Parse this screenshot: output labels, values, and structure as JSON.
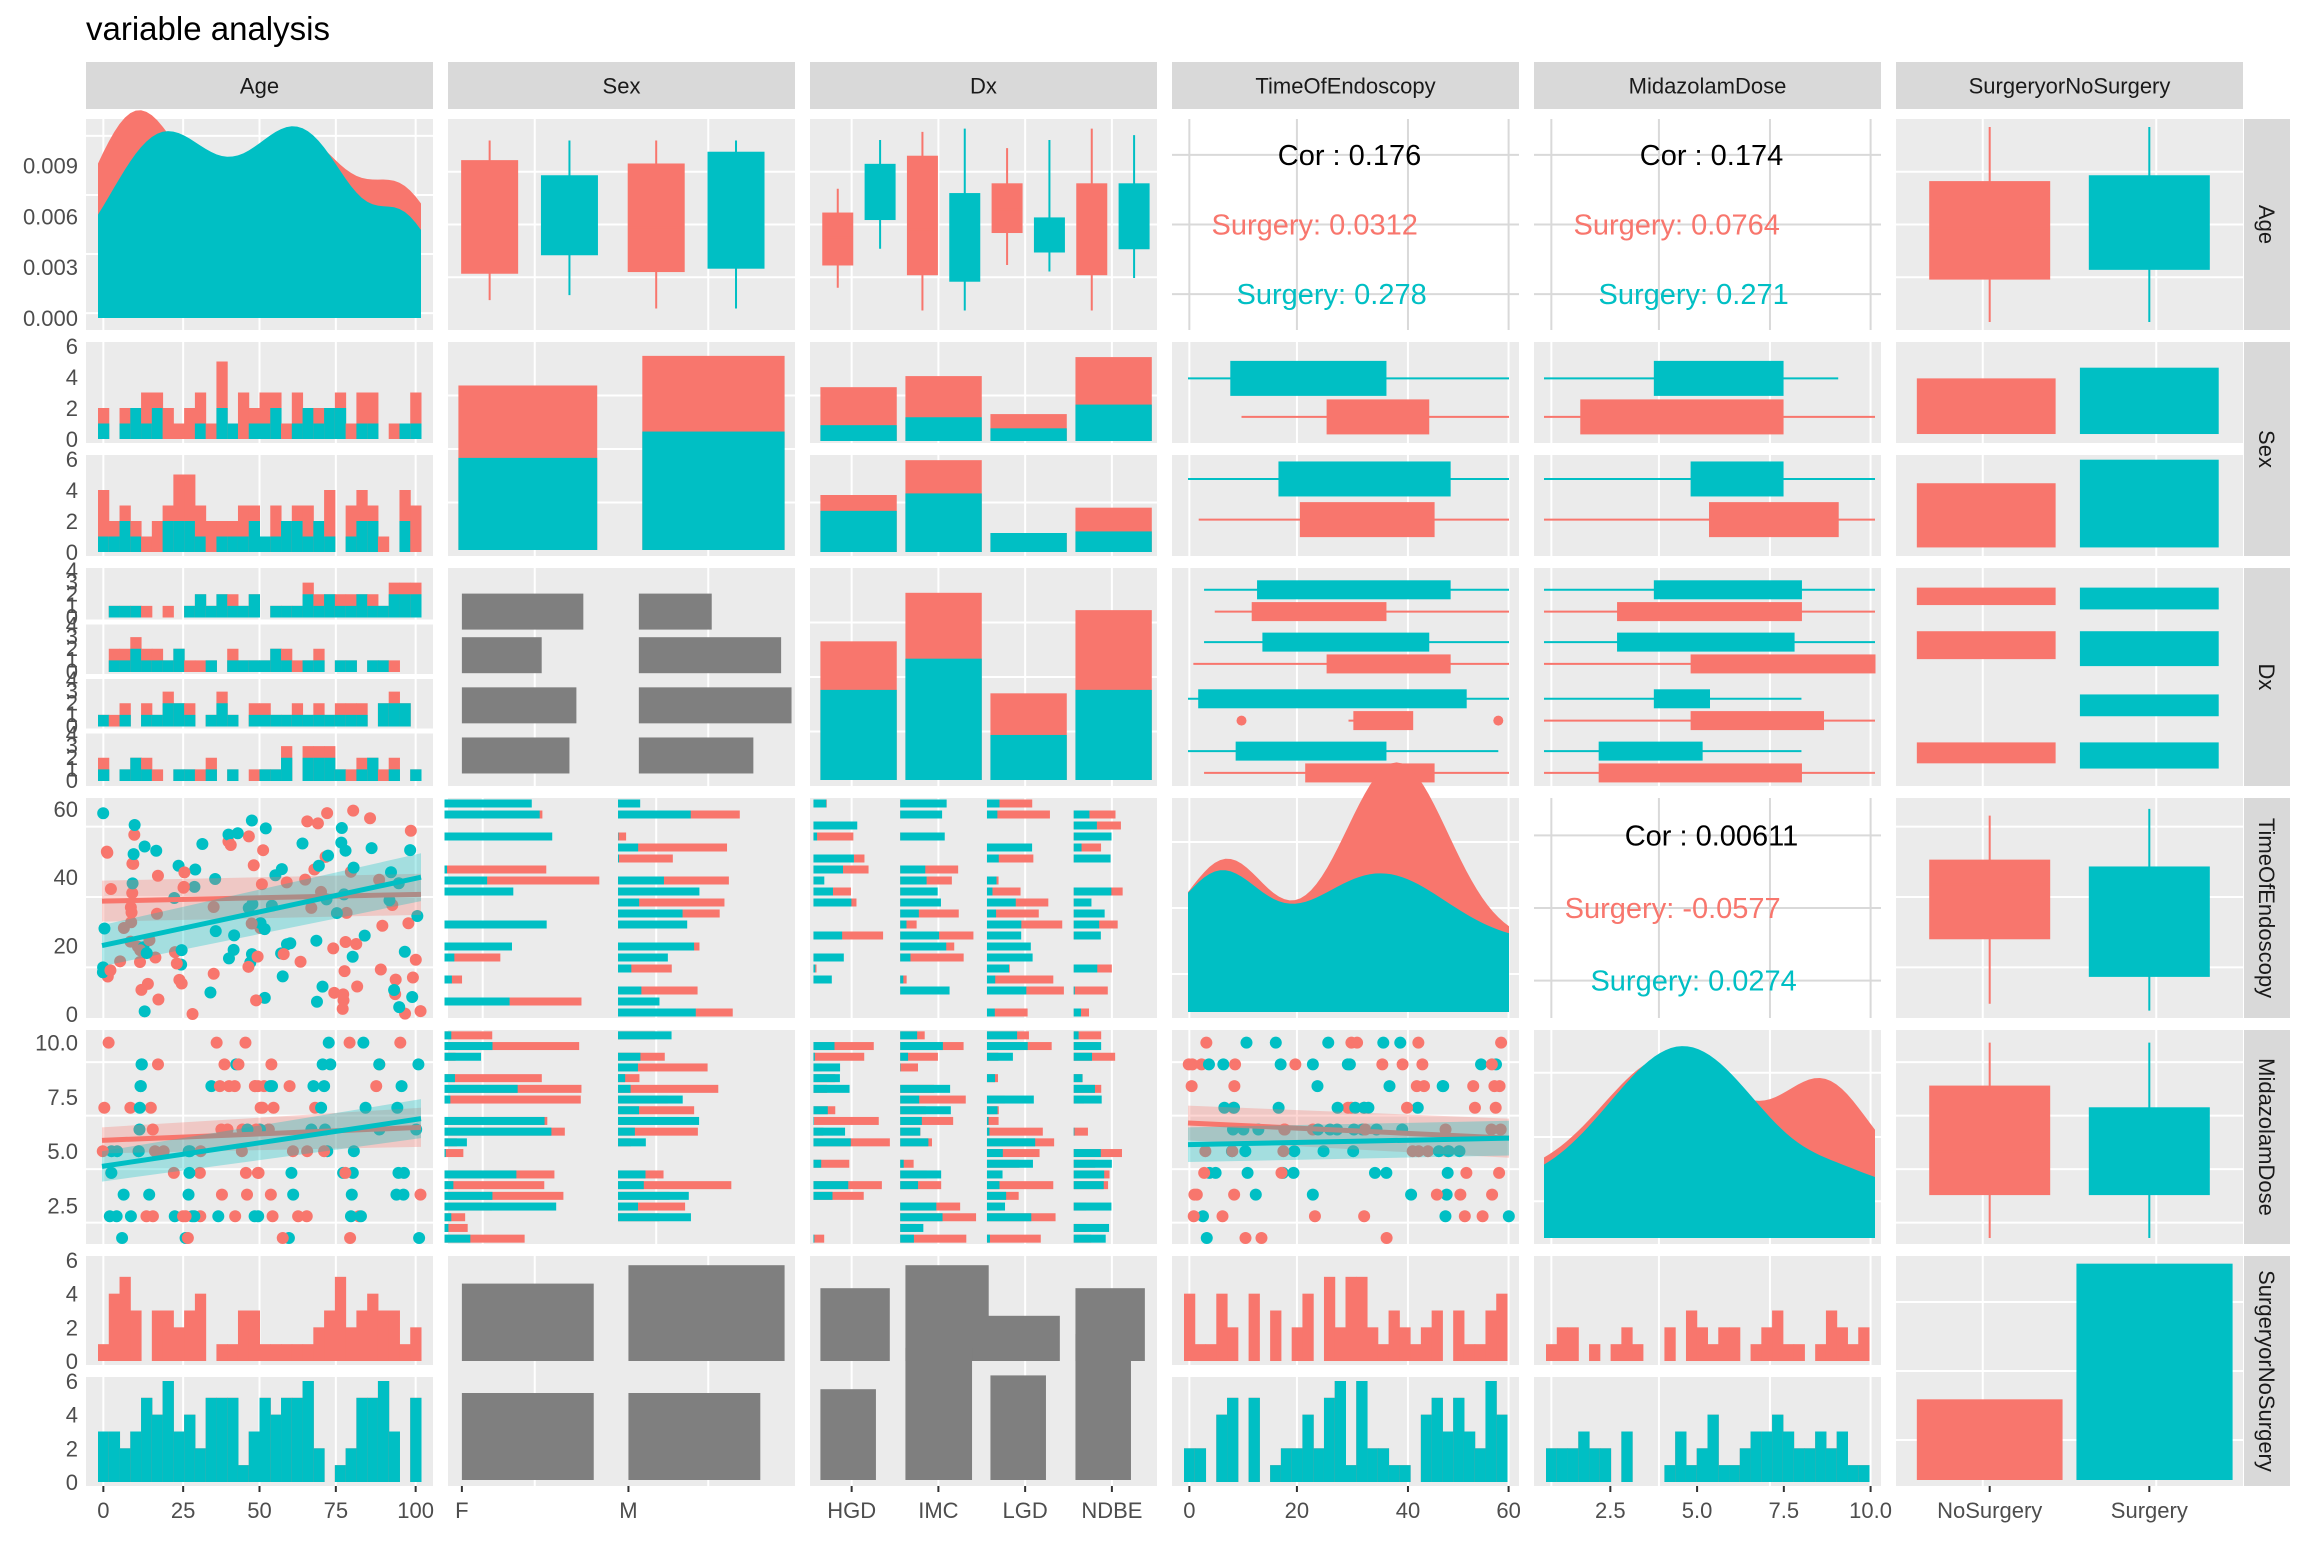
{
  "title": "variable analysis",
  "colors": {
    "NoSurgery": "#F8766D",
    "Surgery": "#00BFC4",
    "neutral": "#7F7F7F",
    "panel": "#EBEBEB",
    "strip": "#D9D9D9"
  },
  "variables": [
    "Age",
    "Sex",
    "Dx",
    "TimeOfEndoscopy",
    "MidazolamDose",
    "SurgeryorNoSurgery"
  ],
  "chart_data": {
    "type": "scatter",
    "title": "variable analysis",
    "kind": "ggpairs scatterplot matrix",
    "variables": [
      "Age",
      "Sex",
      "Dx",
      "TimeOfEndoscopy",
      "MidazolamDose",
      "SurgeryorNoSurgery"
    ],
    "groups": [
      "NoSurgery",
      "Surgery"
    ],
    "sex_levels": [
      "F",
      "M"
    ],
    "dx_levels": [
      "HGD",
      "IMC",
      "LGD",
      "NDBE"
    ],
    "ranges": {
      "Age": [
        0,
        100
      ],
      "TimeOfEndoscopy": [
        0,
        60
      ],
      "MidazolamDose": [
        1,
        10
      ]
    },
    "x_ticks": {
      "Age": [
        "0",
        "25",
        "50",
        "75",
        "100"
      ],
      "Sex": [
        "F",
        "M"
      ],
      "Dx": [
        "HGD",
        "IMC",
        "LGD",
        "NDBE"
      ],
      "TimeOfEndoscopy": [
        "0",
        "20",
        "40",
        "60"
      ],
      "MidazolamDose": [
        "2.5",
        "5.0",
        "7.5",
        "10.0"
      ],
      "SurgeryorNoSurgery": [
        "NoSurgery",
        "Surgery"
      ]
    },
    "y_ticks": {
      "Age_density": [
        "0.000",
        "0.003",
        "0.006",
        "0.009"
      ],
      "count": [
        "0",
        "2",
        "4",
        "6"
      ],
      "TimeOfEndoscopy": [
        "0",
        "20",
        "40",
        "60"
      ],
      "MidazolamDose": [
        "2.5",
        "5.0",
        "7.5",
        "10.0"
      ]
    },
    "correlations": [
      {
        "pair": [
          "Age",
          "TimeOfEndoscopy"
        ],
        "overall": "Cor : 0.176",
        "NoSurgery": "Surgery: 0.0312",
        "Surgery": "Surgery: 0.278"
      },
      {
        "pair": [
          "Age",
          "MidazolamDose"
        ],
        "overall": "Cor : 0.174",
        "NoSurgery": "Surgery: 0.0764",
        "Surgery": "Surgery: 0.271"
      },
      {
        "pair": [
          "TimeOfEndoscopy",
          "MidazolamDose"
        ],
        "overall": "Cor : 0.00611",
        "NoSurgery": "Surgery: -0.0577",
        "Surgery": "Surgery: 0.0274"
      }
    ],
    "counts_sex_by_group": {
      "F": {
        "NoSurgery": 2.2,
        "Surgery": 2.8
      },
      "M": {
        "NoSurgery": 2.3,
        "Surgery": 3.6
      }
    },
    "counts_dx_by_group": {
      "HGD": {
        "NoSurgery": 1.4,
        "Surgery": 2.6
      },
      "IMC": {
        "NoSurgery": 1.9,
        "Surgery": 3.5
      },
      "LGD": {
        "NoSurgery": 1.2,
        "Surgery": 1.3
      },
      "NDBE": {
        "NoSurgery": 2.3,
        "Surgery": 2.6
      }
    },
    "count_group": {
      "NoSurgery": 2.2,
      "Surgery": 5.9
    },
    "age_box": {
      "NoSurgery": {
        "min": 0,
        "q1": 22,
        "median": 48,
        "q3": 72,
        "max": 100
      },
      "Surgery": {
        "min": 0,
        "q1": 27,
        "median": 55,
        "q3": 75,
        "max": 100
      }
    },
    "time_box": {
      "NoSurgery": {
        "min": 3,
        "q1": 22,
        "median": 38,
        "q3": 45,
        "max": 58
      },
      "Surgery": {
        "min": 1,
        "q1": 11,
        "median": 22,
        "q3": 43,
        "max": 60
      }
    },
    "dose_box": {
      "NoSurgery": {
        "min": 1,
        "q1": 3,
        "median": 5,
        "q3": 8,
        "max": 10
      },
      "Surgery": {
        "min": 1,
        "q1": 3,
        "median": 5,
        "q3": 7,
        "max": 10
      }
    }
  }
}
